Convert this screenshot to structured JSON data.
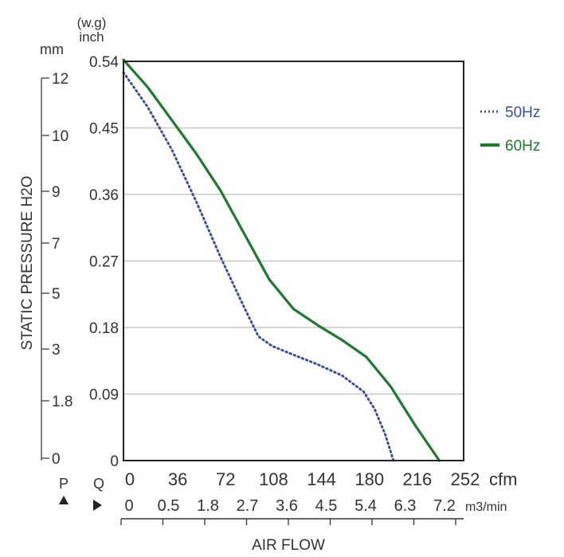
{
  "chart_data": {
    "type": "line",
    "ylabel": "STATIC PRESSURE H2O",
    "xlabel": "AIR FLOW",
    "unit_mm": "mm",
    "unit_inch_top": "(w.g)",
    "unit_inch_bottom": "inch",
    "p_label": "P",
    "q_label": "Q",
    "x_unit_cfm": "cfm",
    "x_unit_m3": "m3/min",
    "x_ticks_cfm": [
      "0",
      "36",
      "72",
      "108",
      "144",
      "180",
      "216",
      "252"
    ],
    "x_ticks_m3": [
      "0",
      "0.5",
      "1.8",
      "2.7",
      "3.6",
      "4.5",
      "5.4",
      "6.3",
      "7.2"
    ],
    "y_ticks_inch": [
      "0",
      "0.09",
      "0.18",
      "0.27",
      "0.36",
      "0.45",
      "0.54"
    ],
    "y_ticks_mm": [
      "12",
      "10",
      "9",
      "7",
      "5",
      "3",
      "1.8",
      "0"
    ],
    "xlim": [
      0,
      252
    ],
    "ylim": [
      0,
      0.54
    ],
    "grid": true,
    "legend_position": "right",
    "series": [
      {
        "name": "50Hz",
        "color": "#3a4fa0",
        "style": "dotted",
        "x": [
          0,
          18,
          36,
          54,
          72,
          90,
          100,
          110,
          126,
          144,
          162,
          178,
          186,
          194,
          200
        ],
        "y": [
          0.525,
          0.478,
          0.42,
          0.35,
          0.275,
          0.205,
          0.168,
          0.155,
          0.143,
          0.13,
          0.115,
          0.093,
          0.07,
          0.035,
          0.0
        ]
      },
      {
        "name": "60Hz",
        "color": "#1e7a2e",
        "style": "solid",
        "x": [
          0,
          18,
          36,
          54,
          72,
          90,
          108,
          126,
          144,
          162,
          180,
          198,
          216,
          234
        ],
        "y": [
          0.542,
          0.505,
          0.46,
          0.415,
          0.365,
          0.305,
          0.245,
          0.205,
          0.183,
          0.163,
          0.14,
          0.1,
          0.048,
          0.0
        ]
      }
    ]
  }
}
